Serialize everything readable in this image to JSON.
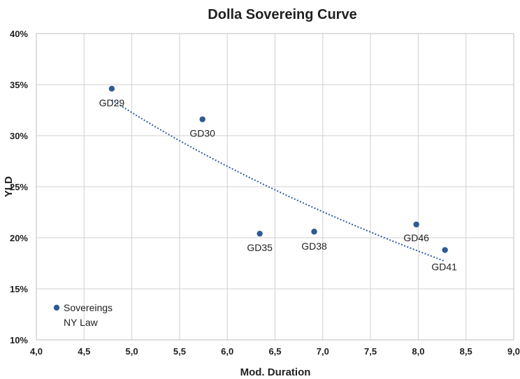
{
  "chart_data": {
    "type": "scatter",
    "title": "Dolla Sovereing Curve",
    "xlabel": "Mod. Duration",
    "ylabel": "YLD",
    "xlim": [
      4.0,
      9.0
    ],
    "ylim": [
      10,
      40
    ],
    "x_ticks": [
      4.0,
      4.5,
      5.0,
      5.5,
      6.0,
      6.5,
      7.0,
      7.5,
      8.0,
      8.5,
      9.0
    ],
    "x_tick_labels": [
      "4,0",
      "4,5",
      "5,0",
      "5,5",
      "6,0",
      "6,5",
      "7,0",
      "7,5",
      "8,0",
      "8,5",
      "9,0"
    ],
    "y_ticks": [
      10,
      15,
      20,
      25,
      30,
      35,
      40
    ],
    "y_tick_labels": [
      "10%",
      "15%",
      "20%",
      "25%",
      "30%",
      "35%",
      "40%"
    ],
    "grid": true,
    "legend_position": "bottom-left",
    "series": [
      {
        "name": "Sovereings NY Law",
        "color": "#2e5b94",
        "points": [
          {
            "label": "GD29",
            "x": 4.79,
            "y": 34.6
          },
          {
            "label": "GD30",
            "x": 5.74,
            "y": 31.6
          },
          {
            "label": "GD35",
            "x": 6.34,
            "y": 20.4
          },
          {
            "label": "GD38",
            "x": 6.91,
            "y": 20.6
          },
          {
            "label": "GD46",
            "x": 7.98,
            "y": 21.3
          },
          {
            "label": "GD41",
            "x": 8.28,
            "y": 18.8
          }
        ]
      }
    ],
    "trendline": {
      "type": "logarithmic",
      "style": "dotted",
      "color": "#2e5fa3",
      "x_range": [
        4.79,
        8.28
      ],
      "y_start": 33.5,
      "y_end": 17.7
    }
  },
  "legend": {
    "line1": "Sovereings",
    "line2": "NY Law"
  }
}
